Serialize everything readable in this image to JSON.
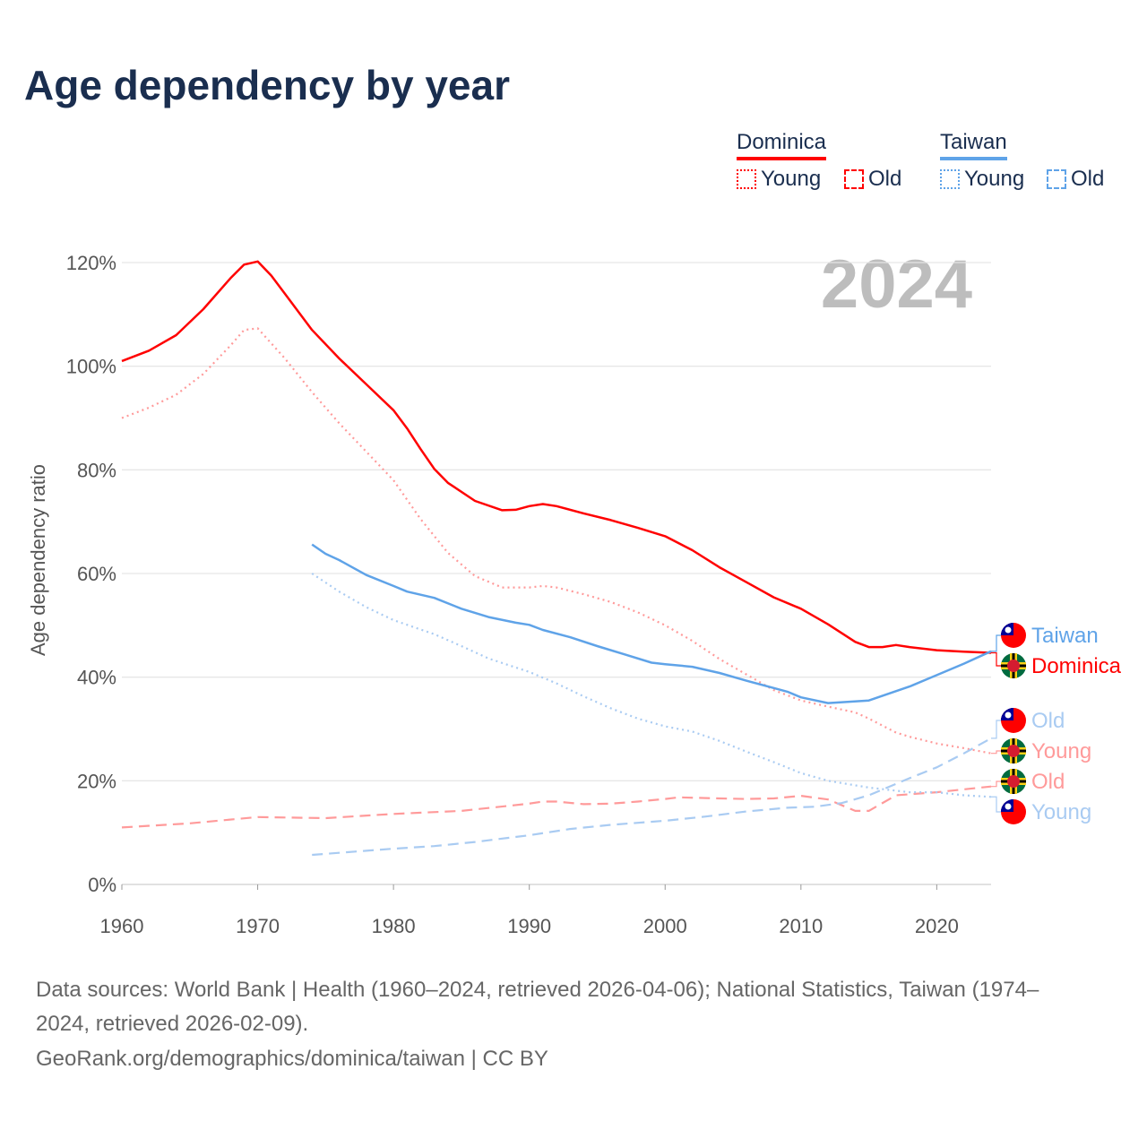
{
  "chart_data": {
    "type": "line",
    "title": "Age dependency by year",
    "ylabel": "Age dependency ratio",
    "xlabel": "",
    "xlim": [
      1960,
      2024
    ],
    "ylim": [
      0,
      120
    ],
    "xticks": [
      "1960",
      "1970",
      "1980",
      "1990",
      "2000",
      "2010",
      "2020"
    ],
    "yticks": [
      "0%",
      "20%",
      "40%",
      "60%",
      "80%",
      "100%",
      "120%"
    ],
    "grid": true,
    "year_watermark": "2024",
    "legend": {
      "placement": "top-right",
      "groups": [
        {
          "country": "Dominica",
          "color": "#ff0000",
          "items": [
            "Young",
            "Old"
          ]
        },
        {
          "country": "Taiwan",
          "color": "#5fa3e8",
          "items": [
            "Young",
            "Old"
          ]
        }
      ]
    },
    "series": [
      {
        "name": "Dominica",
        "kind": "total",
        "color": "#ff0000",
        "style": "solid",
        "x": [
          1960,
          1962,
          1964,
          1966,
          1968,
          1969,
          1970,
          1971,
          1972,
          1974,
          1976,
          1978,
          1980,
          1981,
          1982,
          1983,
          1984,
          1986,
          1988,
          1989,
          1990,
          1991,
          1992,
          1994,
          1996,
          1998,
          2000,
          2002,
          2004,
          2006,
          2008,
          2010,
          2012,
          2014,
          2015,
          2016,
          2017,
          2018,
          2020,
          2022,
          2024
        ],
        "values": [
          101,
          103,
          106,
          111,
          117,
          119.6,
          120.2,
          117.5,
          114,
          107,
          101.5,
          96.5,
          91.5,
          88,
          84,
          80.2,
          77.5,
          74,
          72.2,
          72.3,
          73,
          73.4,
          73,
          71.6,
          70.3,
          68.8,
          67.2,
          64.5,
          61.2,
          58.3,
          55.4,
          53.2,
          50.2,
          46.8,
          45.8,
          45.8,
          46.2,
          45.8,
          45.2,
          44.9,
          44.7
        ]
      },
      {
        "name": "Dominica Young",
        "kind": "young",
        "color": "#ff9a9a",
        "style": "dotted",
        "x": [
          1960,
          1962,
          1964,
          1966,
          1968,
          1969,
          1970,
          1972,
          1974,
          1976,
          1978,
          1980,
          1982,
          1984,
          1986,
          1988,
          1990,
          1991,
          1992,
          1994,
          1996,
          1998,
          2000,
          2002,
          2004,
          2006,
          2008,
          2010,
          2012,
          2014,
          2015,
          2017,
          2018,
          2020,
          2022,
          2024
        ],
        "values": [
          90,
          92,
          94.5,
          98.5,
          104,
          107,
          107.3,
          101.5,
          95,
          89,
          83.5,
          78,
          70.5,
          64,
          59.5,
          57.3,
          57.3,
          57.6,
          57.3,
          56,
          54.5,
          52.5,
          50,
          47,
          43.5,
          40.5,
          37.5,
          35.5,
          34.3,
          33.2,
          32,
          29.3,
          28.5,
          27.2,
          26.3,
          25.3
        ]
      },
      {
        "name": "Dominica Old",
        "kind": "old",
        "color": "#ff9a9a",
        "style": "dashed",
        "x": [
          1960,
          1965,
          1970,
          1975,
          1980,
          1985,
          1990,
          1991,
          1992,
          1994,
          1996,
          1998,
          2000,
          2001,
          2004,
          2006,
          2008,
          2010,
          2012,
          2014,
          2015,
          2017,
          2020,
          2024
        ],
        "values": [
          11,
          11.8,
          13,
          12.8,
          13.6,
          14.2,
          15.6,
          16,
          16,
          15.5,
          15.6,
          16,
          16.5,
          16.8,
          16.6,
          16.5,
          16.6,
          17.1,
          16.4,
          14.2,
          14.2,
          17.2,
          17.8,
          18.9
        ]
      },
      {
        "name": "Taiwan",
        "kind": "total",
        "color": "#5fa3e8",
        "style": "solid",
        "x": [
          1974,
          1975,
          1976,
          1978,
          1980,
          1981,
          1983,
          1985,
          1987,
          1989,
          1990,
          1991,
          1993,
          1995,
          1997,
          1999,
          2000,
          2002,
          2004,
          2006,
          2008,
          2009,
          2010,
          2012,
          2015,
          2018,
          2020,
          2022,
          2024
        ],
        "values": [
          65.6,
          63.8,
          62.6,
          59.7,
          57.6,
          56.5,
          55.3,
          53.2,
          51.6,
          50.5,
          50.1,
          49.1,
          47.7,
          46,
          44.4,
          42.8,
          42.5,
          42,
          40.8,
          39.3,
          37.9,
          37.2,
          36.1,
          35,
          35.5,
          38.2,
          40.4,
          42.6,
          45
        ]
      },
      {
        "name": "Taiwan Young",
        "kind": "young",
        "color": "#a9cbf2",
        "style": "dotted",
        "x": [
          1974,
          1976,
          1978,
          1980,
          1982,
          1983,
          1985,
          1987,
          1990,
          1992,
          1994,
          1996,
          1998,
          2000,
          2002,
          2004,
          2006,
          2008,
          2010,
          2012,
          2015,
          2018,
          2020,
          2022,
          2024
        ],
        "values": [
          60,
          56.5,
          53.5,
          51,
          49.2,
          48.3,
          46,
          43.6,
          41,
          38.8,
          36.3,
          34,
          32,
          30.5,
          29.5,
          27.7,
          25.6,
          23.6,
          21.5,
          20,
          18.7,
          17.8,
          17.8,
          17.2,
          16.9
        ]
      },
      {
        "name": "Taiwan Old",
        "kind": "old",
        "color": "#a9cbf2",
        "style": "dashed",
        "x": [
          1974,
          1976,
          1978,
          1980,
          1983,
          1986,
          1990,
          1993,
          1996,
          2000,
          2003,
          2006,
          2009,
          2011,
          2013,
          2015,
          2018,
          2020,
          2022,
          2024
        ],
        "values": [
          5.7,
          6.1,
          6.5,
          6.9,
          7.4,
          8.2,
          9.5,
          10.7,
          11.5,
          12.3,
          13.1,
          14.1,
          14.8,
          15,
          15.7,
          17.2,
          20.5,
          22.6,
          25.3,
          28.2
        ]
      }
    ],
    "end_labels": [
      {
        "text": "Taiwan",
        "color": "#5fa3e8",
        "flag": "taiwan"
      },
      {
        "text": "Dominica",
        "color": "#ff0000",
        "flag": "dominica"
      },
      {
        "text": "Old",
        "color": "#a9cbf2",
        "flag": "taiwan"
      },
      {
        "text": "Young",
        "color": "#ff9a9a",
        "flag": "dominica"
      },
      {
        "text": "Old",
        "color": "#ff9a9a",
        "flag": "dominica"
      },
      {
        "text": "Young",
        "color": "#a9cbf2",
        "flag": "taiwan"
      }
    ]
  },
  "footer": {
    "sources_line1": "Data sources: World Bank | Health (1960–2024, retrieved 2026-04-06); National Statistics, Taiwan (1974–",
    "sources_line2": "2024, retrieved 2026-02-09).",
    "credit": "GeoRank.org/demographics/dominica/taiwan | CC BY"
  }
}
